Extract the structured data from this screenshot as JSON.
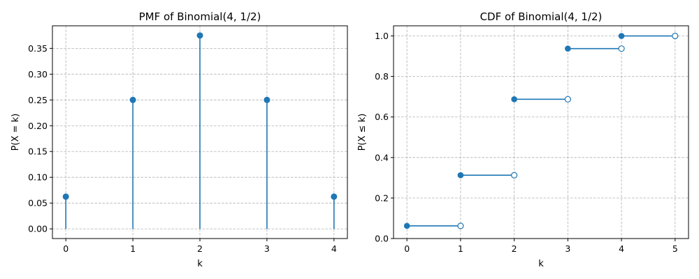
{
  "chart_data": [
    {
      "type": "stem",
      "title": "PMF of Binomial(4, 1/2)",
      "xlabel": "k",
      "ylabel": "P(X = k)",
      "x": [
        0,
        1,
        2,
        3,
        4
      ],
      "y": [
        0.0625,
        0.25,
        0.375,
        0.25,
        0.0625
      ],
      "xlim": [
        -0.2,
        4.2
      ],
      "ylim": [
        -0.01875,
        0.39375
      ],
      "xticks": [
        "0",
        "1",
        "2",
        "3",
        "4"
      ],
      "yticks": [
        "0.00",
        "0.05",
        "0.10",
        "0.15",
        "0.20",
        "0.25",
        "0.30",
        "0.35"
      ],
      "grid": true,
      "color": "#1f77b4"
    },
    {
      "type": "step",
      "title": "CDF of Binomial(4, 1/2)",
      "xlabel": "k",
      "ylabel": "P(X ≤ k)",
      "steps": [
        {
          "x_start": 0,
          "x_end": 1,
          "y": 0.0625
        },
        {
          "x_start": 1,
          "x_end": 2,
          "y": 0.3125
        },
        {
          "x_start": 2,
          "x_end": 3,
          "y": 0.6875
        },
        {
          "x_start": 3,
          "x_end": 4,
          "y": 0.9375
        },
        {
          "x_start": 4,
          "x_end": 5,
          "y": 1.0
        }
      ],
      "xlim": [
        -0.25,
        5.25
      ],
      "ylim": [
        0.0,
        1.05
      ],
      "xticks": [
        "0",
        "1",
        "2",
        "3",
        "4",
        "5"
      ],
      "yticks": [
        "0.0",
        "0.2",
        "0.4",
        "0.6",
        "0.8",
        "1.0"
      ],
      "grid": true,
      "color": "#1f77b4"
    }
  ]
}
